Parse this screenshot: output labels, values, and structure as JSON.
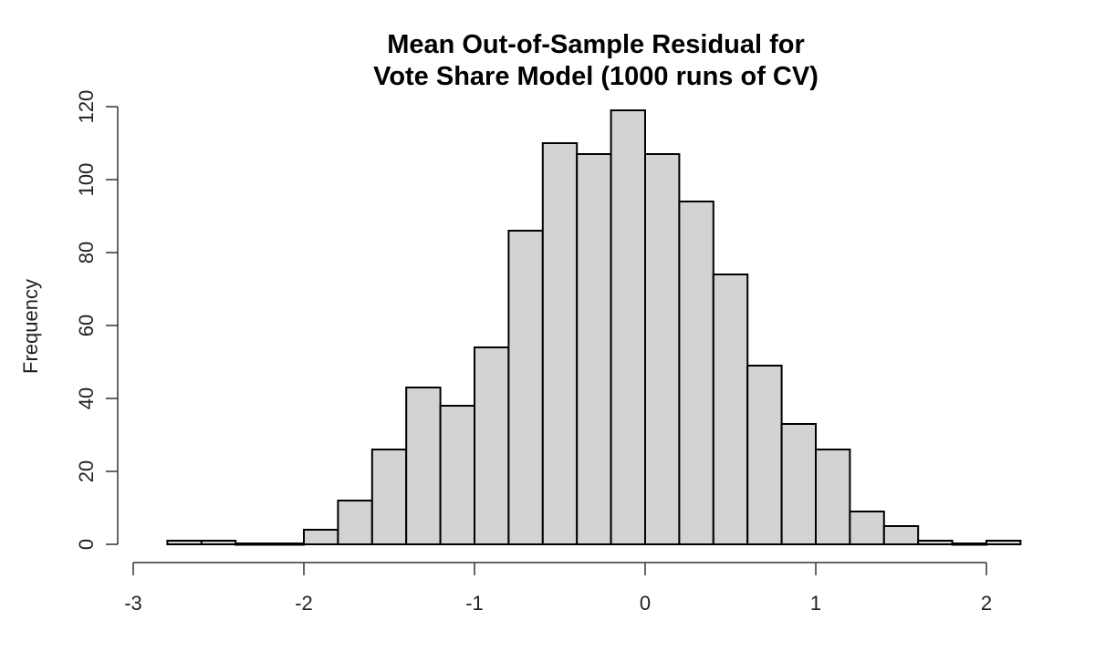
{
  "chart_data": {
    "type": "bar",
    "subtype": "histogram",
    "title": [
      "Mean Out-of-Sample Residual for",
      "Vote Share Model (1000 runs of CV)"
    ],
    "xlabel": "",
    "ylabel": "Frequency",
    "xlim": [
      -3,
      2.2
    ],
    "ylim": [
      0,
      120
    ],
    "x_ticks": [
      -3,
      -2,
      -1,
      0,
      1,
      2
    ],
    "x_tick_labels": [
      "-3",
      "-2",
      "-1",
      "0",
      "1",
      "2"
    ],
    "y_ticks": [
      0,
      20,
      40,
      60,
      80,
      100,
      120
    ],
    "y_tick_labels": [
      "0",
      "20",
      "40",
      "60",
      "80",
      "100",
      "120"
    ],
    "bin_edges": [
      -2.8,
      -2.6,
      -2.4,
      -2.2,
      -2.0,
      -1.8,
      -1.6,
      -1.4,
      -1.2,
      -1.0,
      -0.8,
      -0.6,
      -0.4,
      -0.2,
      0.0,
      0.2,
      0.4,
      0.6,
      0.8,
      1.0,
      1.2,
      1.4,
      1.6,
      1.8,
      2.0,
      2.2
    ],
    "values": [
      1,
      1,
      0,
      0,
      4,
      12,
      26,
      43,
      38,
      54,
      86,
      110,
      107,
      119,
      107,
      94,
      74,
      49,
      33,
      26,
      9,
      5,
      1,
      0,
      1
    ],
    "bar_fill": "#d3d3d3",
    "bar_stroke": "#000000",
    "grid": false,
    "legend": "none"
  }
}
